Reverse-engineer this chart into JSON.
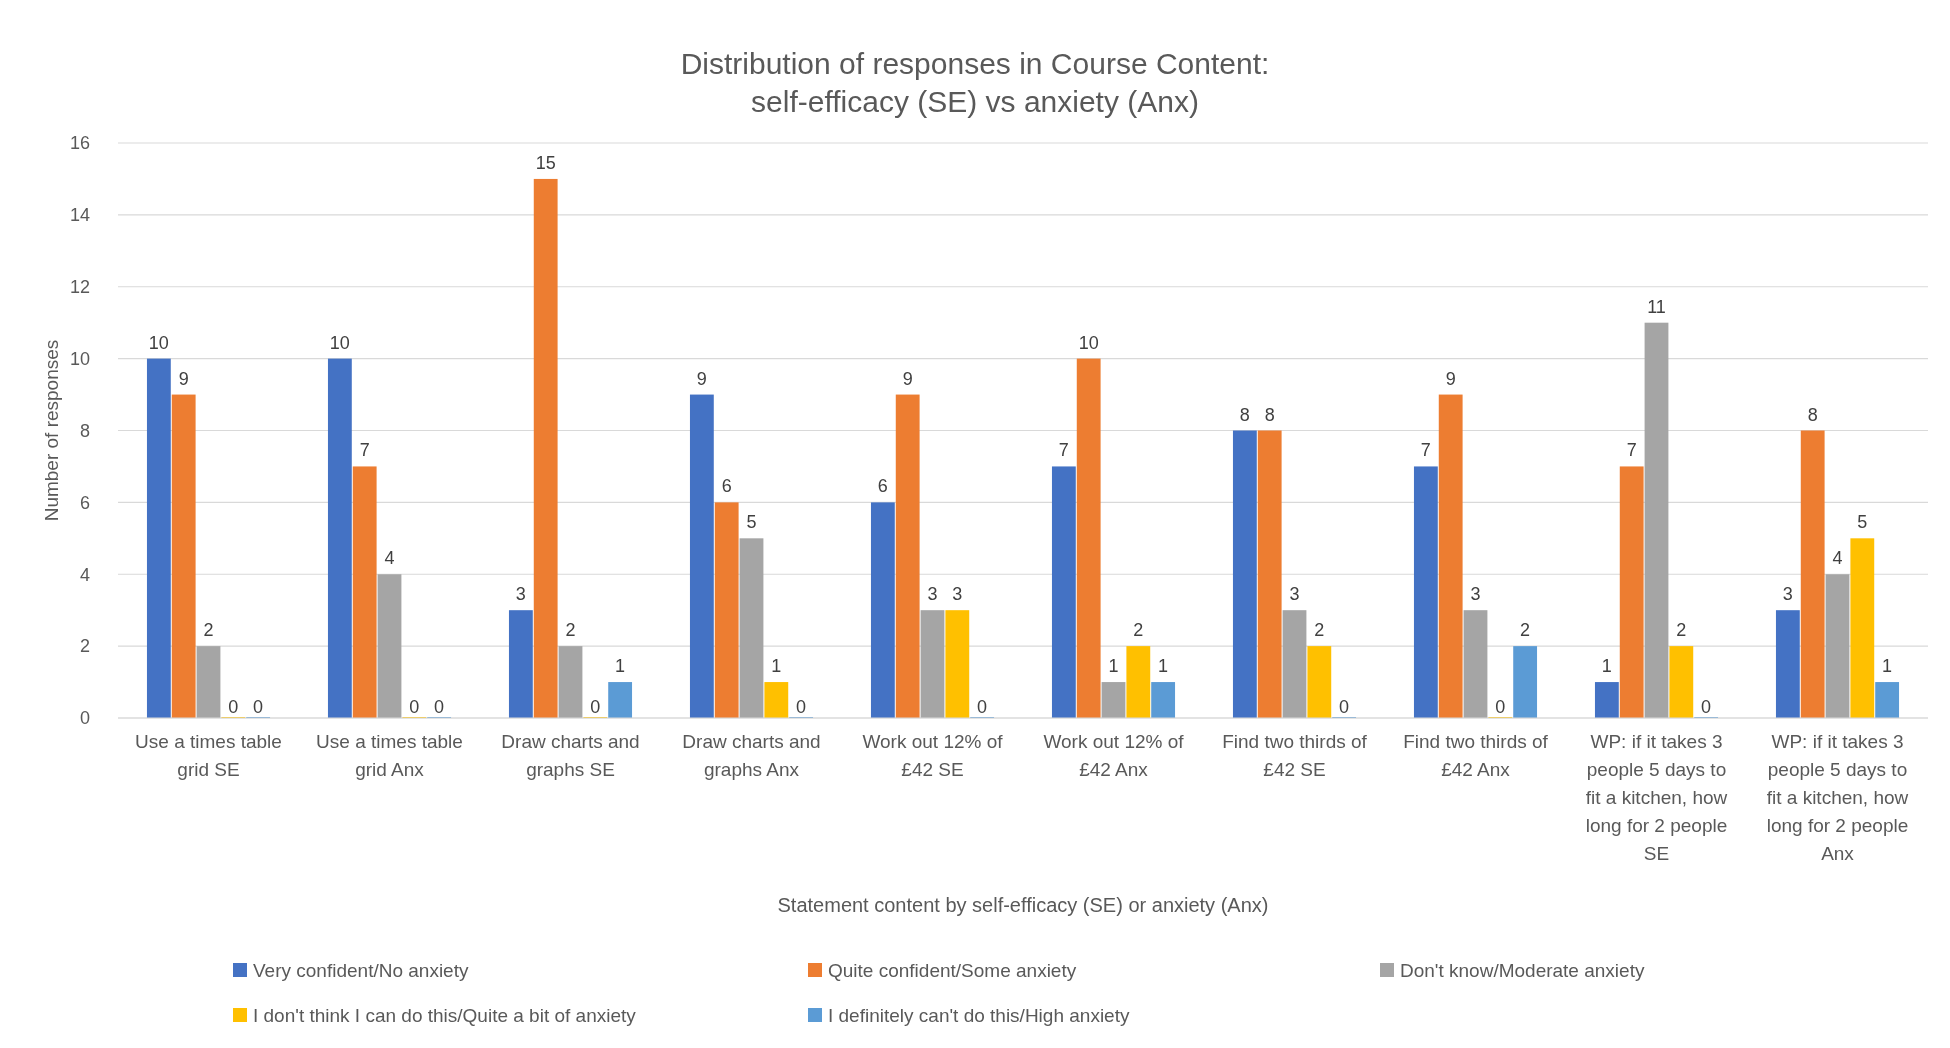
{
  "chart_data": {
    "type": "bar",
    "title": "Distribution of responses in Course Content: self-efficacy (SE) vs anxiety (Anx)",
    "xlabel": "Statement  content by self-efficacy (SE) or anxiety (Anx)",
    "ylabel": "Number of responses",
    "categories": [
      "Use a times table grid SE",
      "Use a times table grid Anx",
      "Draw charts and graphs SE",
      "Draw charts and graphs Anx",
      "Work out 12% of £42 SE",
      "Work out 12% of £42 Anx",
      "Find two thirds of £42 SE",
      "Find two thirds of £42 Anx",
      "WP: if it takes 3 people 5 days to fit a kitchen, how long for 2 people SE",
      "WP: if it takes 3 people 5 days to fit a kitchen, how long for 2 people Anx"
    ],
    "series": [
      {
        "name": "Very confident/No anxiety",
        "color": "#4472c4",
        "values": [
          10,
          10,
          3,
          9,
          6,
          7,
          8,
          7,
          1,
          3
        ]
      },
      {
        "name": "Quite confident/Some anxiety",
        "color": "#ed7d31",
        "values": [
          9,
          7,
          15,
          6,
          9,
          10,
          8,
          9,
          7,
          8
        ]
      },
      {
        "name": "Don't know/Moderate anxiety",
        "color": "#a5a5a5",
        "values": [
          2,
          4,
          2,
          5,
          3,
          1,
          3,
          3,
          11,
          4
        ]
      },
      {
        "name": "I don't think I can do this/Quite a bit of anxiety",
        "color": "#ffc000",
        "values": [
          0,
          0,
          0,
          1,
          3,
          2,
          2,
          0,
          2,
          5
        ]
      },
      {
        "name": "I definitely can't do this/High anxiety",
        "color": "#5b9bd5",
        "values": [
          0,
          0,
          1,
          0,
          0,
          1,
          0,
          2,
          0,
          1
        ]
      }
    ],
    "ylim": [
      0,
      16
    ],
    "yticks": [
      0,
      2,
      4,
      6,
      8,
      10,
      12,
      14,
      16
    ],
    "grid": "y",
    "legend": "bottom",
    "data_labels": true
  }
}
